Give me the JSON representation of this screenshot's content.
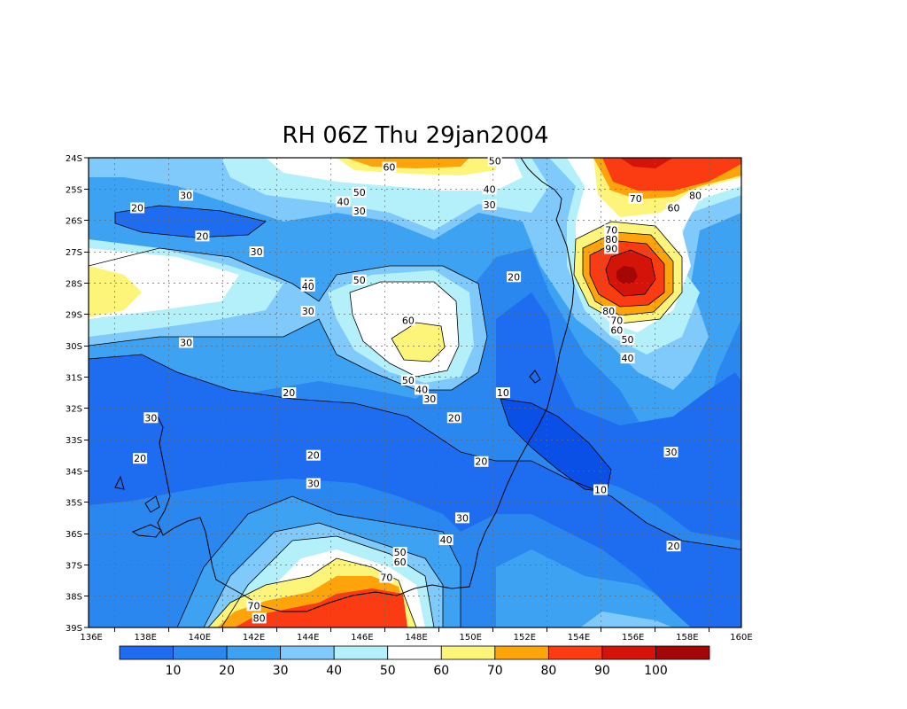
{
  "chart_data": {
    "type": "heatmap",
    "title": "RH 06Z Thu 29jan2004",
    "x_ticks": [
      "136E",
      "138E",
      "140E",
      "142E",
      "144E",
      "146E",
      "148E",
      "150E",
      "152E",
      "154E",
      "156E",
      "158E",
      "160E"
    ],
    "y_ticks": [
      "24S",
      "25S",
      "26S",
      "27S",
      "28S",
      "29S",
      "30S",
      "31S",
      "32S",
      "33S",
      "34S",
      "35S",
      "36S",
      "37S",
      "38S",
      "39S"
    ],
    "xlim": [
      135.9,
      160.0
    ],
    "ylim": [
      -39,
      -24
    ],
    "colorbar": {
      "labels": [
        "10",
        "20",
        "30",
        "40",
        "50",
        "60",
        "70",
        "80",
        "90",
        "100"
      ],
      "colors": [
        "#1e6cf0",
        "#2a87ef",
        "#3da2f2",
        "#7fcafb",
        "#b4f0fa",
        "#ffffff",
        "#fcf57a",
        "#fca40a",
        "#fb3c12",
        "#d41408",
        "#a50606"
      ]
    },
    "contour_labels": [
      {
        "text": "60",
        "lon": 147.0,
        "lat": -24.3
      },
      {
        "text": "50",
        "lon": 150.9,
        "lat": -24.1
      },
      {
        "text": "30",
        "lon": 139.5,
        "lat": -25.2
      },
      {
        "text": "50",
        "lon": 145.9,
        "lat": -25.1
      },
      {
        "text": "40",
        "lon": 145.3,
        "lat": -25.4
      },
      {
        "text": "40",
        "lon": 150.7,
        "lat": -25.0
      },
      {
        "text": "20",
        "lon": 137.7,
        "lat": -25.6
      },
      {
        "text": "30",
        "lon": 145.9,
        "lat": -25.7
      },
      {
        "text": "30",
        "lon": 150.7,
        "lat": -25.5
      },
      {
        "text": "70",
        "lon": 156.1,
        "lat": -25.3
      },
      {
        "text": "80",
        "lon": 158.3,
        "lat": -25.2
      },
      {
        "text": "60",
        "lon": 157.5,
        "lat": -25.6
      },
      {
        "text": "20",
        "lon": 140.1,
        "lat": -26.5
      },
      {
        "text": "70",
        "lon": 155.2,
        "lat": -26.3
      },
      {
        "text": "80",
        "lon": 155.2,
        "lat": -26.6
      },
      {
        "text": "90",
        "lon": 155.2,
        "lat": -26.9
      },
      {
        "text": "30",
        "lon": 142.1,
        "lat": -27.0
      },
      {
        "text": "40",
        "lon": 144.0,
        "lat": -28.0
      },
      {
        "text": "40",
        "lon": 144.0,
        "lat": -28.1
      },
      {
        "text": "50",
        "lon": 145.9,
        "lat": -27.9
      },
      {
        "text": "20",
        "lon": 151.6,
        "lat": -27.8
      },
      {
        "text": "30",
        "lon": 144.0,
        "lat": -28.9
      },
      {
        "text": "80",
        "lon": 155.1,
        "lat": -28.9
      },
      {
        "text": "70",
        "lon": 155.4,
        "lat": -29.2
      },
      {
        "text": "60",
        "lon": 155.4,
        "lat": -29.5
      },
      {
        "text": "60",
        "lon": 147.7,
        "lat": -29.2
      },
      {
        "text": "50",
        "lon": 155.8,
        "lat": -29.8
      },
      {
        "text": "30",
        "lon": 139.5,
        "lat": -29.9
      },
      {
        "text": "40",
        "lon": 155.8,
        "lat": -30.4
      },
      {
        "text": "50",
        "lon": 147.7,
        "lat": -31.1
      },
      {
        "text": "40",
        "lon": 148.2,
        "lat": -31.4
      },
      {
        "text": "30",
        "lon": 148.5,
        "lat": -31.7
      },
      {
        "text": "20",
        "lon": 143.3,
        "lat": -31.5
      },
      {
        "text": "10",
        "lon": 151.2,
        "lat": -31.5
      },
      {
        "text": "30",
        "lon": 138.2,
        "lat": -32.3
      },
      {
        "text": "20",
        "lon": 149.4,
        "lat": -32.3
      },
      {
        "text": "30",
        "lon": 157.4,
        "lat": -33.4
      },
      {
        "text": "20",
        "lon": 137.8,
        "lat": -33.6
      },
      {
        "text": "20",
        "lon": 144.2,
        "lat": -33.5
      },
      {
        "text": "20",
        "lon": 150.4,
        "lat": -33.7
      },
      {
        "text": "10",
        "lon": 154.8,
        "lat": -34.6
      },
      {
        "text": "30",
        "lon": 144.2,
        "lat": -34.4
      },
      {
        "text": "30",
        "lon": 149.7,
        "lat": -35.5
      },
      {
        "text": "40",
        "lon": 149.1,
        "lat": -36.2
      },
      {
        "text": "50",
        "lon": 147.4,
        "lat": -36.6
      },
      {
        "text": "60",
        "lon": 147.4,
        "lat": -36.9
      },
      {
        "text": "70",
        "lon": 146.9,
        "lat": -37.4
      },
      {
        "text": "20",
        "lon": 157.5,
        "lat": -36.4
      },
      {
        "text": "70",
        "lon": 142.0,
        "lat": -38.3
      },
      {
        "text": "80",
        "lon": 142.2,
        "lat": -38.7
      }
    ]
  }
}
